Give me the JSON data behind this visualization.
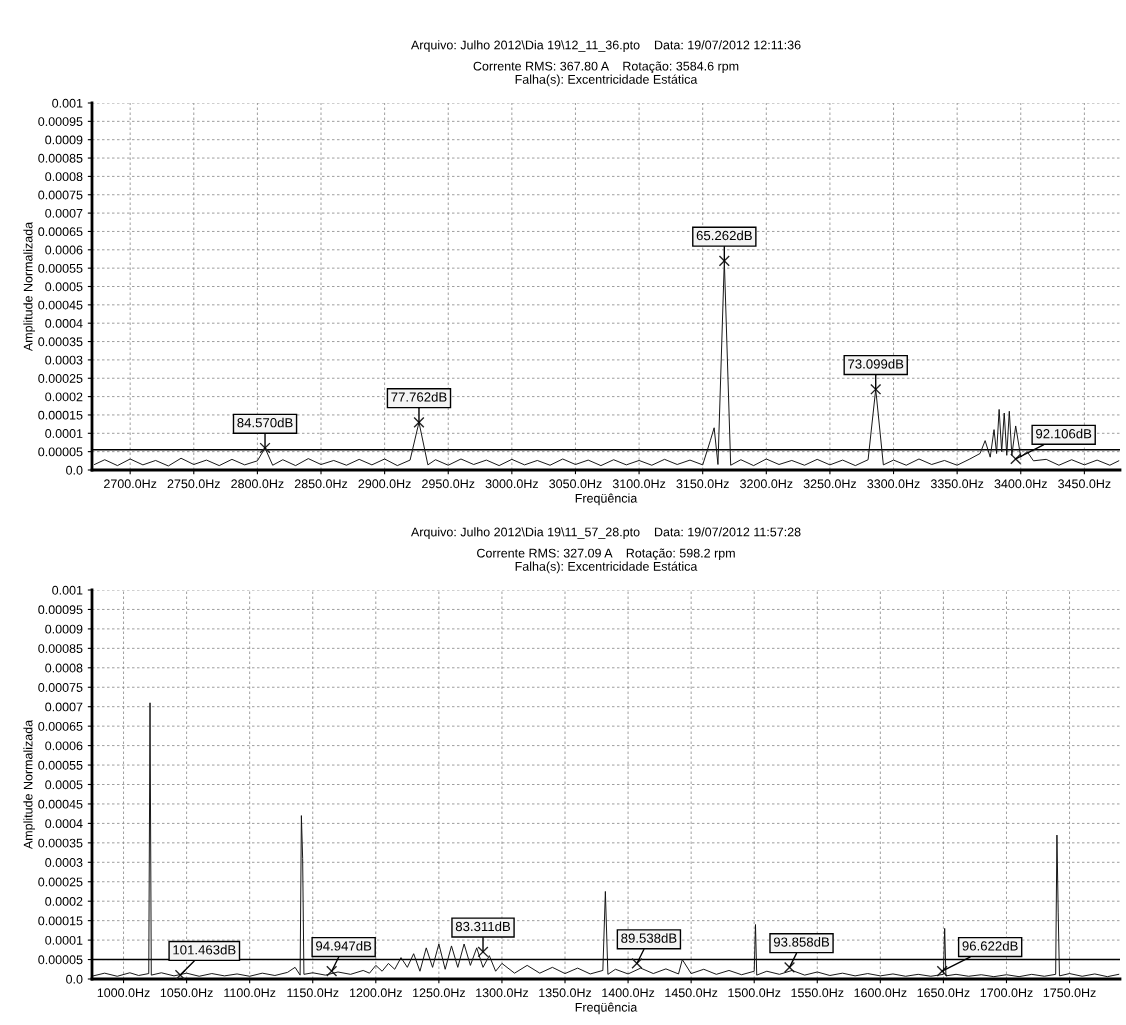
{
  "chart_data": [
    {
      "type": "line",
      "title": "Arquivo: Julho 2012\\Dia 19\\12_11_36.pto    Data: 19/07/2012 12:11:36",
      "subtitle": "Corrente RMS: 367.80 A    Rotação: 3584.6 rpm\nFalha(s): Excentricidade Estática",
      "xlabel": "Freqüência",
      "ylabel": "Amplitude Normalizada",
      "series": [
        {
          "color": "#111111",
          "x": [
            2672,
            2680,
            2690,
            2700,
            2710,
            2720,
            2730,
            2740,
            2750,
            2760,
            2770,
            2780,
            2790,
            2800,
            2806,
            2812,
            2820,
            2830,
            2840,
            2850,
            2860,
            2870,
            2880,
            2890,
            2900,
            2910,
            2920,
            2927,
            2934,
            2940,
            2950,
            2960,
            2970,
            2980,
            2990,
            3000,
            3010,
            3020,
            3030,
            3040,
            3050,
            3060,
            3070,
            3080,
            3090,
            3100,
            3110,
            3120,
            3130,
            3140,
            3150,
            3156,
            3159,
            3162,
            3167,
            3172,
            3180,
            3190,
            3200,
            3210,
            3220,
            3230,
            3240,
            3250,
            3260,
            3270,
            3280,
            3286,
            3292,
            3300,
            3310,
            3320,
            3330,
            3340,
            3350,
            3360,
            3368,
            3372,
            3376,
            3379,
            3381,
            3383,
            3385,
            3387,
            3389,
            3391,
            3393,
            3396,
            3400,
            3405,
            3410,
            3420,
            3430,
            3440,
            3450,
            3460,
            3470,
            3477
          ],
          "values": [
            1.5e-05,
            2.8e-05,
            1.2e-05,
            3e-05,
            1.4e-05,
            2.6e-05,
            1.1e-05,
            3.2e-05,
            1.5e-05,
            2.7e-05,
            1.2e-05,
            2.9e-05,
            1.4e-05,
            2.5e-05,
            6e-05,
            1.3e-05,
            2.8e-05,
            1.2e-05,
            3.1e-05,
            1.5e-05,
            2.6e-05,
            1.3e-05,
            2.9e-05,
            1.4e-05,
            3e-05,
            1.2e-05,
            2.7e-05,
            0.00013,
            1.4e-05,
            2.8e-05,
            1.3e-05,
            3e-05,
            1.5e-05,
            2.7e-05,
            1.2e-05,
            2.9e-05,
            1.4e-05,
            2.6e-05,
            1.3e-05,
            3e-05,
            1.5e-05,
            2.7e-05,
            1.2e-05,
            2.8e-05,
            1.4e-05,
            2.6e-05,
            1.3e-05,
            2.9e-05,
            1.5e-05,
            2.7e-05,
            1.4e-05,
            8e-05,
            0.000115,
            1.5e-05,
            0.00057,
            1.3e-05,
            2.8e-05,
            1.2e-05,
            3e-05,
            1.5e-05,
            2.6e-05,
            1.3e-05,
            2.9e-05,
            1.4e-05,
            2.7e-05,
            1.2e-05,
            2.8e-05,
            0.00022,
            1.4e-05,
            2.7e-05,
            1.3e-05,
            3e-05,
            1.5e-05,
            2.6e-05,
            1.3e-05,
            3e-05,
            4.5e-05,
            8e-05,
            3.5e-05,
            0.00011,
            4.5e-05,
            0.000165,
            5e-05,
            0.000155,
            4e-05,
            0.00016,
            4e-05,
            0.00012,
            3.5e-05,
            5e-05,
            2.5e-05,
            2.9e-05,
            1.3e-05,
            2.8e-05,
            1.4e-05,
            2.7e-05,
            1.3e-05,
            2.5e-05
          ]
        }
      ],
      "xlim": [
        2670,
        3478
      ],
      "ylim": [
        0,
        0.001
      ],
      "xticks": [
        {
          "value": 2700,
          "label": "2700.0Hz"
        },
        {
          "value": 2750,
          "label": "2750.0Hz"
        },
        {
          "value": 2800,
          "label": "2800.0Hz"
        },
        {
          "value": 2850,
          "label": "2850.0Hz"
        },
        {
          "value": 2900,
          "label": "2900.0Hz"
        },
        {
          "value": 2950,
          "label": "2950.0Hz"
        },
        {
          "value": 3000,
          "label": "3000.0Hz"
        },
        {
          "value": 3050,
          "label": "3050.0Hz"
        },
        {
          "value": 3100,
          "label": "3100.0Hz"
        },
        {
          "value": 3150,
          "label": "3150.0Hz"
        },
        {
          "value": 3200,
          "label": "3200.0Hz"
        },
        {
          "value": 3250,
          "label": "3250.0Hz"
        },
        {
          "value": 3300,
          "label": "3300.0Hz"
        },
        {
          "value": 3350,
          "label": "3350.0Hz"
        },
        {
          "value": 3400,
          "label": "3400.0Hz"
        },
        {
          "value": 3450,
          "label": "3450.0Hz"
        }
      ],
      "yticks": [
        {
          "value": 0,
          "label": "0.0"
        },
        {
          "value": 5e-05,
          "label": "0.00005"
        },
        {
          "value": 0.0001,
          "label": "0.0001"
        },
        {
          "value": 0.00015,
          "label": "0.00015"
        },
        {
          "value": 0.0002,
          "label": "0.0002"
        },
        {
          "value": 0.00025,
          "label": "0.00025"
        },
        {
          "value": 0.0003,
          "label": "0.0003"
        },
        {
          "value": 0.00035,
          "label": "0.00035"
        },
        {
          "value": 0.0004,
          "label": "0.0004"
        },
        {
          "value": 0.00045,
          "label": "0.00045"
        },
        {
          "value": 0.0005,
          "label": "0.0005"
        },
        {
          "value": 0.00055,
          "label": "0.00055"
        },
        {
          "value": 0.0006,
          "label": "0.0006"
        },
        {
          "value": 0.00065,
          "label": "0.00065"
        },
        {
          "value": 0.0007,
          "label": "0.0007"
        },
        {
          "value": 0.00075,
          "label": "0.00075"
        },
        {
          "value": 0.0008,
          "label": "0.0008"
        },
        {
          "value": 0.00085,
          "label": "0.00085"
        },
        {
          "value": 0.0009,
          "label": "0.0009"
        },
        {
          "value": 0.00095,
          "label": "0.00095"
        },
        {
          "value": 0.001,
          "label": "0.001"
        }
      ],
      "ref_lines": [
        {
          "axis": "y",
          "value": 5.5e-05,
          "color": "#000000"
        }
      ],
      "annotations": [
        {
          "text": "84.570dB",
          "x": 2806,
          "y": 6e-05
        },
        {
          "text": "77.762dB",
          "x": 2927,
          "y": 0.00013
        },
        {
          "text": "65.262dB",
          "x": 3167,
          "y": 0.00057
        },
        {
          "text": "73.099dB",
          "x": 3286,
          "y": 0.00022
        },
        {
          "text": "92.106dB",
          "x": 3396,
          "y": 3e-05
        }
      ],
      "grid": true,
      "line_style": "solid"
    },
    {
      "type": "line",
      "title": "Arquivo: Julho 2012\\Dia 19\\11_57_28.pto    Data: 19/07/2012 11:57:28",
      "subtitle": "Corrente RMS: 327.09 A    Rotação: 598.2 rpm\nFalha(s): Excentricidade Estática",
      "xlabel": "Freqüência",
      "ylabel": "Amplitude Normalizada",
      "series": [
        {
          "color": "#111111",
          "x": [
            976,
            985,
            995,
            1005,
            1012,
            1020,
            1021,
            1022,
            1030,
            1040,
            1050,
            1060,
            1070,
            1080,
            1090,
            1100,
            1110,
            1120,
            1130,
            1136,
            1140,
            1141,
            1142,
            1143,
            1150,
            1160,
            1170,
            1180,
            1190,
            1195,
            1200,
            1205,
            1210,
            1215,
            1220,
            1225,
            1230,
            1235,
            1240,
            1245,
            1250,
            1255,
            1260,
            1265,
            1270,
            1275,
            1280,
            1285,
            1290,
            1295,
            1300,
            1310,
            1320,
            1330,
            1340,
            1350,
            1360,
            1370,
            1380,
            1382,
            1384,
            1390,
            1400,
            1410,
            1420,
            1430,
            1440,
            1443,
            1450,
            1460,
            1470,
            1480,
            1490,
            1500,
            1501,
            1502,
            1510,
            1520,
            1530,
            1540,
            1550,
            1560,
            1570,
            1580,
            1590,
            1600,
            1610,
            1620,
            1630,
            1640,
            1650,
            1651,
            1652,
            1660,
            1670,
            1680,
            1690,
            1700,
            1710,
            1720,
            1730,
            1739,
            1740,
            1741,
            1742,
            1750,
            1760,
            1770,
            1780,
            1789
          ],
          "values": [
            8e-06,
            1.5e-05,
            7e-06,
            1.6e-05,
            9e-06,
            1.4e-05,
            0.00071,
            1e-05,
            1.6e-05,
            8e-06,
            1.5e-05,
            7e-06,
            1.4e-05,
            8e-06,
            1.3e-05,
            7e-06,
            1.5e-05,
            9e-06,
            1.7e-05,
            3e-05,
            1e-05,
            0.00042,
            0.00031,
            1.2e-05,
            1.6e-05,
            1e-05,
            1.8e-05,
            1.2e-05,
            2.2e-05,
            1.5e-05,
            3.5e-05,
            2e-05,
            4e-05,
            2.5e-05,
            5.5e-05,
            3e-05,
            6.5e-05,
            2e-05,
            8e-05,
            3e-05,
            9e-05,
            2.5e-05,
            8.5e-05,
            3e-05,
            9e-05,
            3.5e-05,
            8e-05,
            3e-05,
            6e-05,
            2e-05,
            4e-05,
            1.5e-05,
            3.5e-05,
            1.5e-05,
            3e-05,
            1.4e-05,
            2.8e-05,
            1.3e-05,
            2.2e-05,
            0.000225,
            1.2e-05,
            2.5e-05,
            1.3e-05,
            2.8e-05,
            1.4e-05,
            2.6e-05,
            1.3e-05,
            5e-05,
            1.4e-05,
            2.5e-05,
            1.2e-05,
            2.2e-05,
            1.1e-05,
            2e-05,
            0.00014,
            1e-05,
            2e-05,
            1.2e-05,
            2.2e-05,
            1e-05,
            1.8e-05,
            9e-06,
            1.5e-05,
            8e-06,
            1.4e-05,
            8e-06,
            1.3e-05,
            7e-06,
            1.2e-05,
            7e-06,
            1.2e-05,
            0.00013,
            8e-06,
            1.2e-05,
            7e-06,
            1.1e-05,
            6e-06,
            1.1e-05,
            6e-06,
            1.2e-05,
            7e-06,
            1.2e-05,
            0.00037,
            0.00017,
            8e-06,
            1.4e-05,
            7e-06,
            1.3e-05,
            6e-06,
            1.2e-05
          ]
        }
      ],
      "xlim": [
        975,
        1790
      ],
      "ylim": [
        0,
        0.001
      ],
      "xticks": [
        {
          "value": 1000,
          "label": "1000.0Hz"
        },
        {
          "value": 1050,
          "label": "1050.0Hz"
        },
        {
          "value": 1100,
          "label": "1100.0Hz"
        },
        {
          "value": 1150,
          "label": "1150.0Hz"
        },
        {
          "value": 1200,
          "label": "1200.0Hz"
        },
        {
          "value": 1250,
          "label": "1250.0Hz"
        },
        {
          "value": 1300,
          "label": "1300.0Hz"
        },
        {
          "value": 1350,
          "label": "1350.0Hz"
        },
        {
          "value": 1400,
          "label": "1400.0Hz"
        },
        {
          "value": 1450,
          "label": "1450.0Hz"
        },
        {
          "value": 1500,
          "label": "1500.0Hz"
        },
        {
          "value": 1550,
          "label": "1550.0Hz"
        },
        {
          "value": 1600,
          "label": "1600.0Hz"
        },
        {
          "value": 1650,
          "label": "1650.0Hz"
        },
        {
          "value": 1700,
          "label": "1700.0Hz"
        },
        {
          "value": 1750,
          "label": "1750.0Hz"
        }
      ],
      "yticks": [
        {
          "value": 0,
          "label": "0.0"
        },
        {
          "value": 5e-05,
          "label": "0.00005"
        },
        {
          "value": 0.0001,
          "label": "0.0001"
        },
        {
          "value": 0.00015,
          "label": "0.00015"
        },
        {
          "value": 0.0002,
          "label": "0.0002"
        },
        {
          "value": 0.00025,
          "label": "0.00025"
        },
        {
          "value": 0.0003,
          "label": "0.0003"
        },
        {
          "value": 0.00035,
          "label": "0.00035"
        },
        {
          "value": 0.0004,
          "label": "0.0004"
        },
        {
          "value": 0.00045,
          "label": "0.00045"
        },
        {
          "value": 0.0005,
          "label": "0.0005"
        },
        {
          "value": 0.00055,
          "label": "0.00055"
        },
        {
          "value": 0.0006,
          "label": "0.0006"
        },
        {
          "value": 0.00065,
          "label": "0.00065"
        },
        {
          "value": 0.0007,
          "label": "0.0007"
        },
        {
          "value": 0.00075,
          "label": "0.00075"
        },
        {
          "value": 0.0008,
          "label": "0.0008"
        },
        {
          "value": 0.00085,
          "label": "0.00085"
        },
        {
          "value": 0.0009,
          "label": "0.0009"
        },
        {
          "value": 0.00095,
          "label": "0.00095"
        },
        {
          "value": 0.001,
          "label": "0.001"
        }
      ],
      "ref_lines": [
        {
          "axis": "y",
          "value": 5e-05,
          "color": "#000000"
        }
      ],
      "annotations": [
        {
          "text": "101.463dB",
          "x": 1045,
          "y": 1e-05
        },
        {
          "text": "94.947dB",
          "x": 1165,
          "y": 2e-05
        },
        {
          "text": "83.311dB",
          "x": 1285,
          "y": 7e-05
        },
        {
          "text": "89.538dB",
          "x": 1407,
          "y": 4e-05
        },
        {
          "text": "93.858dB",
          "x": 1528,
          "y": 3e-05
        },
        {
          "text": "96.622dB",
          "x": 1649,
          "y": 2e-05
        }
      ],
      "grid": true,
      "line_style": "solid"
    }
  ]
}
